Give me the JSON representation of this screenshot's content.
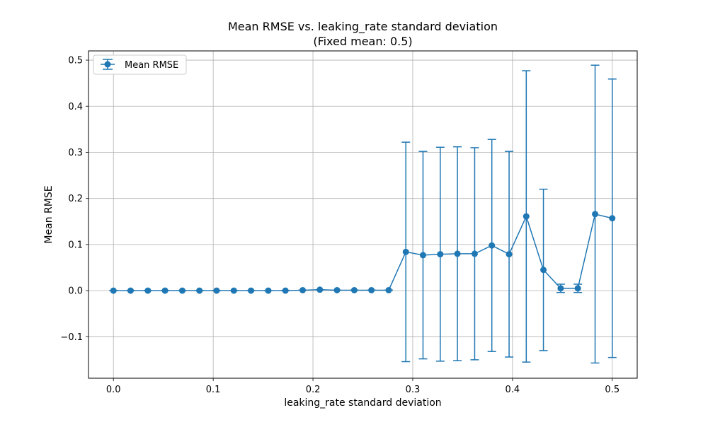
{
  "chart_data": {
    "type": "line",
    "title": "Mean RMSE vs. leaking_rate standard deviation",
    "subtitle": "(Fixed mean: 0.5)",
    "xlabel": "leaking_rate standard deviation",
    "ylabel": "Mean RMSE",
    "xlim": [
      -0.025,
      0.525
    ],
    "ylim": [
      -0.19,
      0.52
    ],
    "x_ticks": [
      0.0,
      0.1,
      0.2,
      0.3,
      0.4,
      0.5
    ],
    "x_tick_labels": [
      "0.0",
      "0.1",
      "0.2",
      "0.3",
      "0.4",
      "0.5"
    ],
    "y_ticks": [
      -0.1,
      0.0,
      0.1,
      0.2,
      0.3,
      0.4,
      0.5
    ],
    "y_tick_labels": [
      "−0.1",
      "0.0",
      "0.1",
      "0.2",
      "0.3",
      "0.4",
      "0.5"
    ],
    "grid": true,
    "legend_position": "top-left",
    "series": [
      {
        "name": "Mean RMSE",
        "color": "#1f77b4",
        "marker": "circle",
        "error_bars": true,
        "x": [
          0.0,
          0.0172,
          0.0345,
          0.0517,
          0.069,
          0.0862,
          0.1034,
          0.1207,
          0.1379,
          0.1552,
          0.1724,
          0.1897,
          0.2069,
          0.2241,
          0.2414,
          0.2586,
          0.2759,
          0.2931,
          0.3103,
          0.3276,
          0.3448,
          0.3621,
          0.3793,
          0.3966,
          0.4138,
          0.431,
          0.4483,
          0.4655,
          0.4828,
          0.5
        ],
        "y": [
          0.0,
          0.0,
          0.0,
          0.0,
          0.0,
          0.0,
          0.0,
          0.0,
          0.0,
          0.0,
          0.0,
          0.001,
          0.002,
          0.001,
          0.001,
          0.001,
          0.001,
          0.084,
          0.077,
          0.079,
          0.08,
          0.08,
          0.098,
          0.079,
          0.161,
          0.045,
          0.005,
          0.005,
          0.166,
          0.157
        ],
        "error": [
          0.0,
          0.0,
          0.0,
          0.0,
          0.0,
          0.0,
          0.0,
          0.0,
          0.0,
          0.0,
          0.0,
          0.0,
          0.0,
          0.0,
          0.0,
          0.0,
          0.0,
          0.238,
          0.225,
          0.232,
          0.232,
          0.23,
          0.23,
          0.223,
          0.316,
          0.175,
          0.009,
          0.009,
          0.323,
          0.302
        ]
      }
    ]
  }
}
